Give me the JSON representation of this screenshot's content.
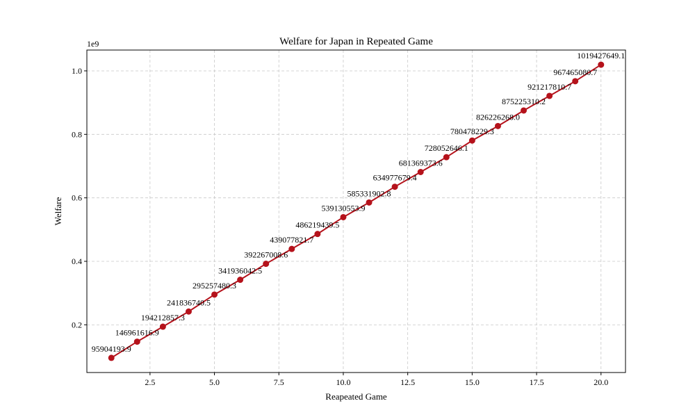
{
  "chart_data": {
    "type": "line",
    "title": "Welfare for Japan in Repeated Game",
    "xlabel": "Reapeated Game",
    "ylabel": "Welfare",
    "y_offset_label": "1e9",
    "y_scale": 1000000000,
    "xlim": [
      0.05,
      20.95
    ],
    "ylim": [
      49728020,
      1065603822
    ],
    "x_ticks": [
      2.5,
      5.0,
      7.5,
      10.0,
      12.5,
      15.0,
      17.5,
      20.0
    ],
    "x_tick_labels": [
      "2.5",
      "5.0",
      "7.5",
      "10.0",
      "12.5",
      "15.0",
      "17.5",
      "20.0"
    ],
    "y_ticks": [
      0.2,
      0.4,
      0.6,
      0.8,
      1.0
    ],
    "y_tick_labels": [
      "0.2",
      "0.4",
      "0.6",
      "0.8",
      "1.0"
    ],
    "grid": true,
    "series": [
      {
        "color": "#b5121b",
        "marker": "circle",
        "x": [
          1,
          2,
          3,
          4,
          5,
          6,
          7,
          8,
          9,
          10,
          11,
          12,
          13,
          14,
          15,
          16,
          17,
          18,
          19,
          20
        ],
        "values": [
          95904193.9,
          146961616.9,
          194212857.3,
          241836740.5,
          295257480.3,
          341936042.5,
          392267008.6,
          439077821.7,
          486219439.5,
          539130553.9,
          585331902.8,
          634977679.4,
          681369373.6,
          728052646.1,
          780478229.3,
          826226268.0,
          875225310.2,
          921217810.7,
          967465080.7,
          1019427649.1
        ],
        "labels": [
          "95904193.9",
          "146961616.9",
          "194212857.3",
          "241836740.5",
          "295257480.3",
          "341936042.5",
          "392267008.6",
          "439077821.7",
          "486219439.5",
          "539130553.9",
          "585331902.8",
          "634977679.4",
          "681369373.6",
          "728052646.1",
          "780478229.3",
          "826226268.0",
          "875225310.2",
          "921217810.7",
          "967465080.7",
          "1019427649.1"
        ]
      }
    ]
  }
}
